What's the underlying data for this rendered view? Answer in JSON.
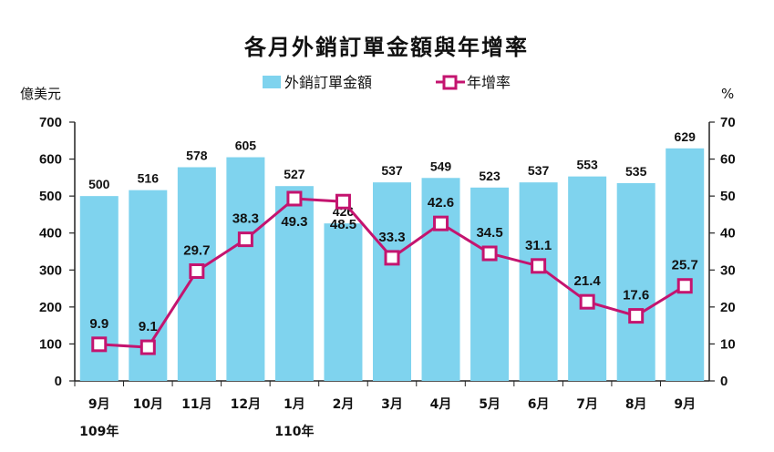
{
  "chart_data": {
    "type": "bar",
    "title": "各月外銷訂單金額與年增率",
    "categories": [
      "9月",
      "10月",
      "11月",
      "12月",
      "1月",
      "2月",
      "3月",
      "4月",
      "5月",
      "6月",
      "7月",
      "8月",
      "9月"
    ],
    "year_labels": [
      {
        "index": 0,
        "label": "109年"
      },
      {
        "index": 4,
        "label": "110年"
      }
    ],
    "series": [
      {
        "name": "外銷訂單金額",
        "type": "bar",
        "axis": "left",
        "color": "#7fd3ee",
        "values": [
          500,
          516,
          578,
          605,
          527,
          426,
          537,
          549,
          523,
          537,
          553,
          535,
          629
        ]
      },
      {
        "name": "年增率",
        "type": "line",
        "axis": "right",
        "color": "#c4146f",
        "values": [
          9.9,
          9.1,
          29.7,
          38.3,
          49.3,
          48.5,
          33.3,
          42.6,
          34.5,
          31.1,
          21.4,
          17.6,
          25.7
        ]
      }
    ],
    "ylabel": "億美元",
    "y2label": "%",
    "ylim": [
      0,
      700
    ],
    "yticks": [
      0,
      100,
      200,
      300,
      400,
      500,
      600,
      700
    ],
    "y2lim": [
      0,
      70
    ],
    "y2ticks": [
      0,
      10,
      20,
      30,
      40,
      50,
      60,
      70
    ],
    "legend": "top",
    "grid": false
  }
}
